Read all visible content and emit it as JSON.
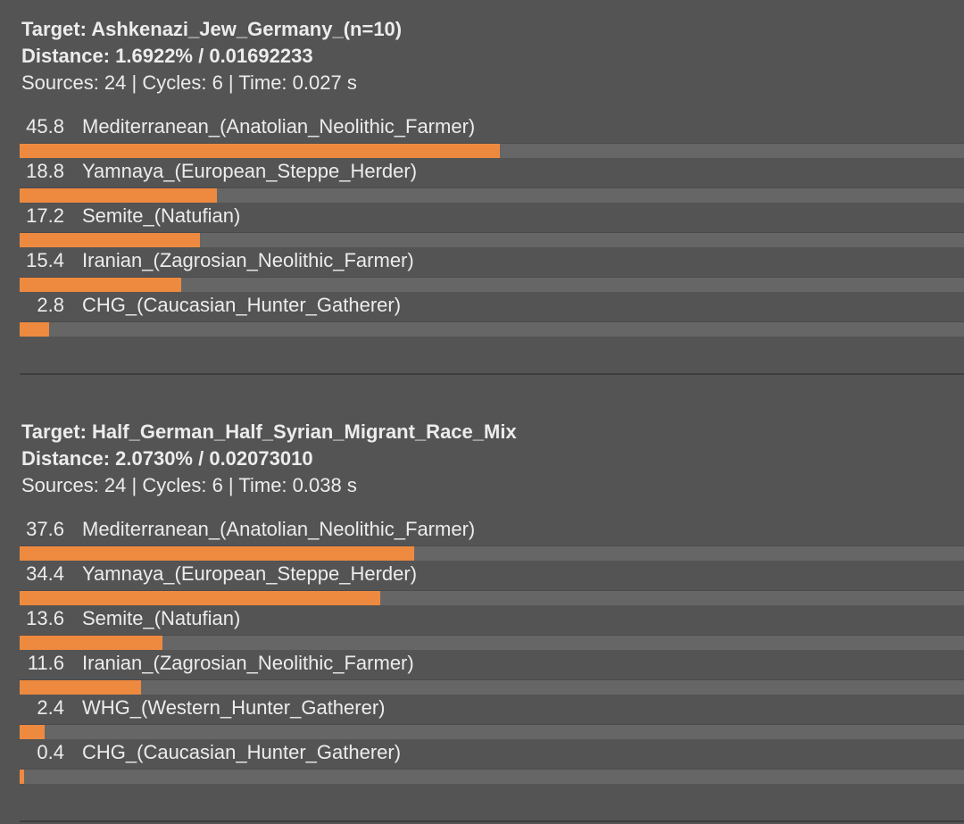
{
  "results": [
    {
      "target": "Target: Ashkenazi_Jew_Germany_(n=10)",
      "distance": "Distance: 1.6922% / 0.01692233",
      "info": "Sources: 24 | Cycles: 6 | Time: 0.027 s",
      "rows": [
        {
          "pct": "45.8",
          "value": 45.8,
          "name": "Mediterranean_(Anatolian_Neolithic_Farmer)"
        },
        {
          "pct": "18.8",
          "value": 18.8,
          "name": "Yamnaya_(European_Steppe_Herder)"
        },
        {
          "pct": "17.2",
          "value": 17.2,
          "name": "Semite_(Natufian)"
        },
        {
          "pct": "15.4",
          "value": 15.4,
          "name": "Iranian_(Zagrosian_Neolithic_Farmer)"
        },
        {
          "pct": "2.8",
          "value": 2.8,
          "name": "CHG_(Caucasian_Hunter_Gatherer)"
        }
      ]
    },
    {
      "target": "Target: Half_German_Half_Syrian_Migrant_Race_Mix",
      "distance": "Distance: 2.0730% / 0.02073010",
      "info": "Sources: 24 | Cycles: 6 | Time: 0.038 s",
      "rows": [
        {
          "pct": "37.6",
          "value": 37.6,
          "name": "Mediterranean_(Anatolian_Neolithic_Farmer)"
        },
        {
          "pct": "34.4",
          "value": 34.4,
          "name": "Yamnaya_(European_Steppe_Herder)"
        },
        {
          "pct": "13.6",
          "value": 13.6,
          "name": "Semite_(Natufian)"
        },
        {
          "pct": "11.6",
          "value": 11.6,
          "name": "Iranian_(Zagrosian_Neolithic_Farmer)"
        },
        {
          "pct": "2.4",
          "value": 2.4,
          "name": "WHG_(Western_Hunter_Gatherer)"
        },
        {
          "pct": "0.4",
          "value": 0.4,
          "name": "CHG_(Caucasian_Hunter_Gatherer)"
        }
      ]
    }
  ],
  "colors": {
    "bar_fill": "#ee8a40",
    "bar_track": "#666666",
    "background": "#545454",
    "text": "#ececec"
  }
}
